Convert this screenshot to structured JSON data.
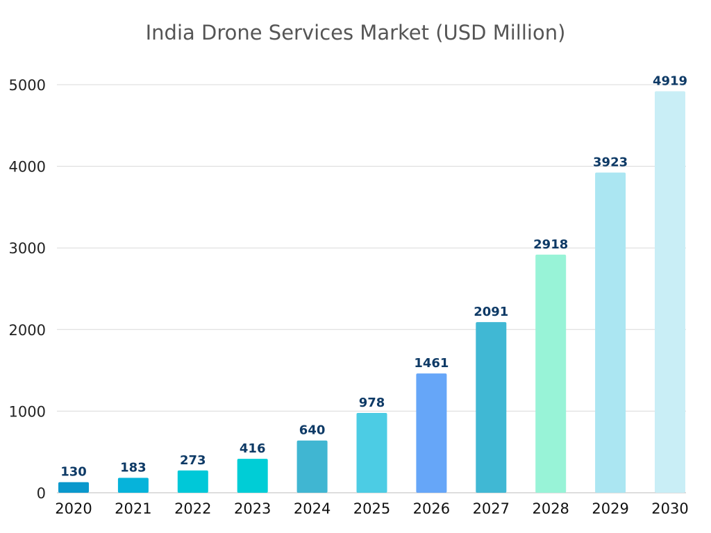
{
  "chart_data": {
    "type": "bar",
    "title": "India Drone Services Market (USD Million)",
    "xlabel": "",
    "ylabel": "",
    "categories": [
      "2020",
      "2021",
      "2022",
      "2023",
      "2024",
      "2025",
      "2026",
      "2027",
      "2028",
      "2029",
      "2030"
    ],
    "values": [
      130,
      183,
      273,
      416,
      640,
      978,
      1461,
      2091,
      2918,
      3923,
      4919
    ],
    "ylim": [
      0,
      5000
    ],
    "yticks": [
      0,
      1000,
      2000,
      3000,
      4000,
      5000
    ],
    "grid": true,
    "data_labels": true,
    "colors": [
      "#0a98cc",
      "#06b3da",
      "#00c8d8",
      "#00cdd6",
      "#40b6d2",
      "#4ccce4",
      "#66a6f8",
      "#40b8d4",
      "#98f3d7",
      "#abe6f2",
      "#c9eef6"
    ],
    "label_color": "#0e3a66",
    "grid_color": "#d9d9d9"
  }
}
